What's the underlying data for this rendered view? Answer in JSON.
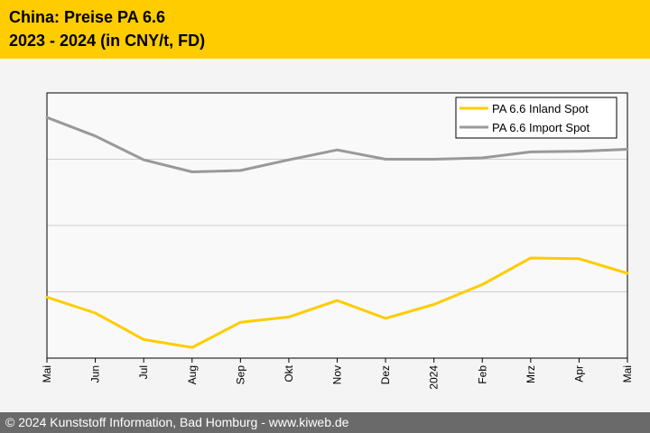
{
  "header": {
    "title_line1": "China: Preise PA 6.6",
    "title_line2": "2023 - 2024 (in CNY/t, FD)"
  },
  "footer": {
    "copyright": "© 2024 Kunststoff Information, Bad Homburg - www.kiweb.de"
  },
  "colors": {
    "header_bg": "#ffcc00",
    "footer_bg": "#6a6a6a",
    "inland": "#ffcc00",
    "import": "#999999"
  },
  "chart_data": {
    "type": "line",
    "title": "China: Preise PA 6.6 2023 - 2024 (in CNY/t, FD)",
    "xlabel": "",
    "ylabel": "",
    "categories": [
      "Mai",
      "Jun",
      "Jul",
      "Aug",
      "Sep",
      "Okt",
      "Nov",
      "Dez",
      "2024",
      "Feb",
      "Mrz",
      "Apr",
      "Mai"
    ],
    "ylim": [
      0,
      4
    ],
    "grid": true,
    "legend_position": "top-right",
    "series": [
      {
        "name": "PA 6.6 Inland Spot",
        "color": "#ffcc00",
        "values": [
          0.92,
          0.68,
          0.28,
          0.16,
          0.54,
          0.62,
          0.87,
          0.6,
          0.81,
          1.11,
          1.51,
          1.5,
          1.28
        ]
      },
      {
        "name": "PA 6.6 Import Spot",
        "color": "#999999",
        "values": [
          3.63,
          3.35,
          2.99,
          2.81,
          2.83,
          2.99,
          3.14,
          3.0,
          3.0,
          3.02,
          3.11,
          3.12,
          3.15
        ]
      }
    ]
  }
}
